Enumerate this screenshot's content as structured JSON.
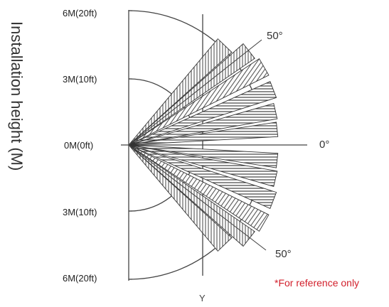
{
  "axis": {
    "title": "Installation height (M)",
    "ticks": [
      "6M(20ft)",
      "3M(10ft)",
      "0M(0ft)",
      "3M(10ft)",
      "6M(20ft)"
    ],
    "vertical_axis_label": "Y"
  },
  "angles": {
    "top": "50°",
    "middle": "0°",
    "bottom": "50°"
  },
  "note": "*For reference only",
  "colors": {
    "line": "#444444",
    "note": "#d21f2b"
  }
}
